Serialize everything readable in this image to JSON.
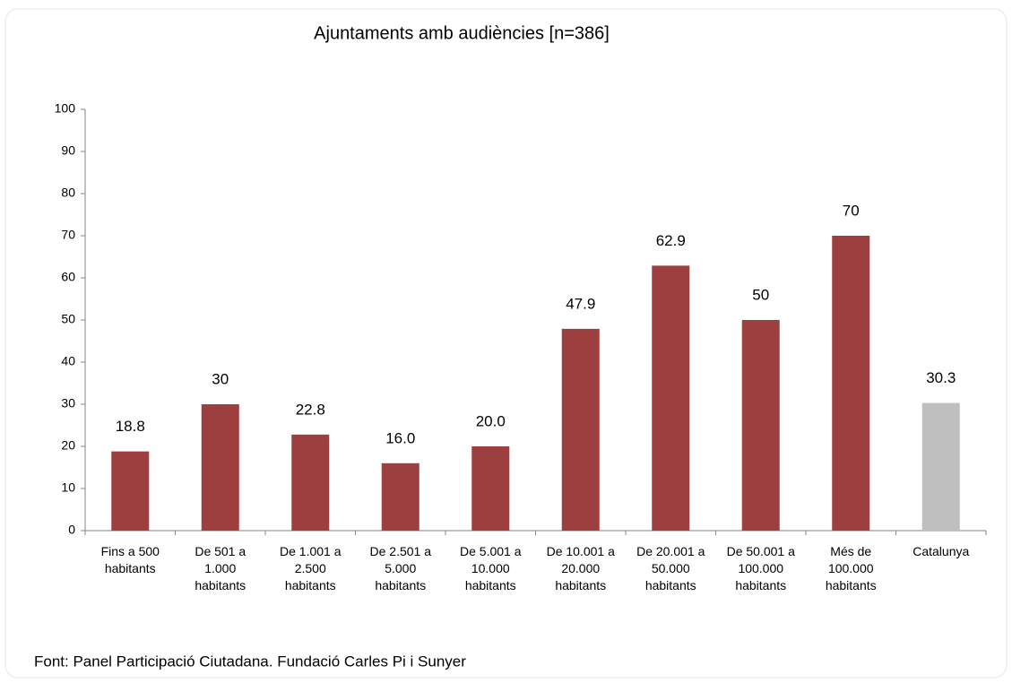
{
  "chart_data": {
    "type": "bar",
    "title": "Ajuntaments amb audiències [n=386]",
    "categories": [
      "Fins a 500 habitants",
      "De 501 a 1.000 habitants",
      "De 1.001 a 2.500 habitants",
      "De 2.501 a 5.000 habitants",
      "De 5.001 a 10.000 habitants",
      "De 10.001 a 20.000 habitants",
      "De 20.001 a 50.000 habitants",
      "De 50.001 a 100.000 habitants",
      "Més de 100.000 habitants",
      "Catalunya"
    ],
    "values": [
      18.8,
      30,
      22.8,
      16,
      20,
      47.9,
      62.9,
      50,
      70,
      30.3
    ],
    "value_labels": [
      "18.8",
      "30",
      "22.8",
      "16.0",
      "20.0",
      "47.9",
      "62.9",
      "50",
      "70",
      "30.3"
    ],
    "colors": [
      "#9e3f3f",
      "#9e3f3f",
      "#9e3f3f",
      "#9e3f3f",
      "#9e3f3f",
      "#9e3f3f",
      "#9e3f3f",
      "#9e3f3f",
      "#9e3f3f",
      "#bfbfbf"
    ],
    "ylim": [
      0,
      100
    ],
    "yticks": [
      0,
      10,
      20,
      30,
      40,
      50,
      60,
      70,
      80,
      90,
      100
    ],
    "grid": false,
    "source": "Font: Panel Participació Ciutadana. Fundació Carles Pi i Sunyer"
  }
}
